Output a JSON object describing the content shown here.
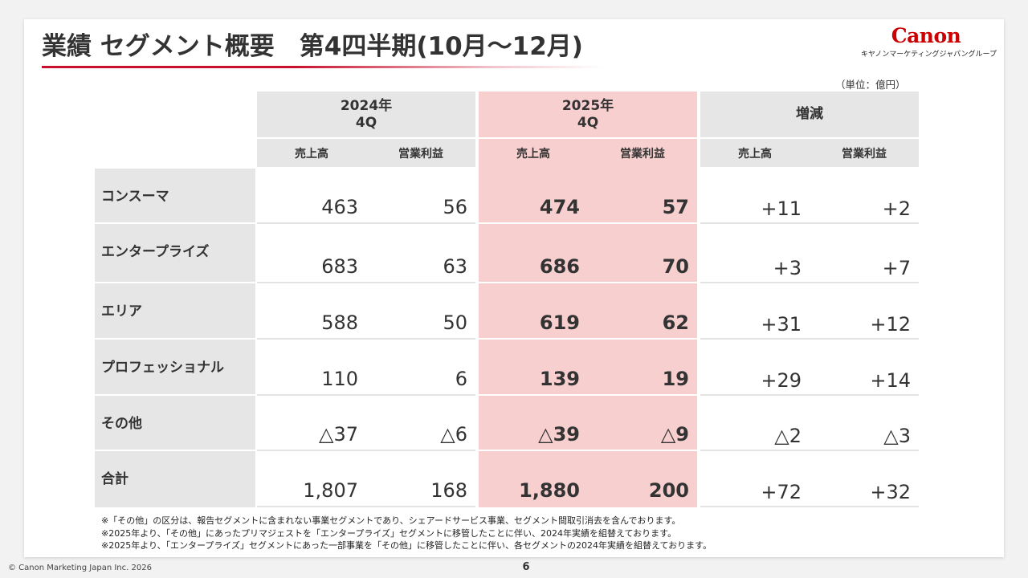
{
  "title": "業績 セグメント概要　第4四半期(10月～12月)",
  "logo": {
    "mark": "Canon",
    "sub": "キヤノンマーケティングジャパングループ"
  },
  "unit": "（単位：億円）",
  "table": {
    "groups": [
      {
        "line1": "2024年",
        "line2": "4Q"
      },
      {
        "line1": "2025年",
        "line2": "4Q"
      },
      {
        "line1": "増減",
        "line2": ""
      }
    ],
    "sub_headers": [
      "売上高",
      "営業利益",
      "売上高",
      "営業利益",
      "売上高",
      "営業利益"
    ],
    "rows": [
      {
        "label": "コンスーマ",
        "values": [
          "463",
          "56",
          "474",
          "57",
          "+11",
          "+2"
        ]
      },
      {
        "label": "エンタープライズ",
        "values": [
          "683",
          "63",
          "686",
          "70",
          "+3",
          "+7"
        ]
      },
      {
        "label": "エリア",
        "values": [
          "588",
          "50",
          "619",
          "62",
          "+31",
          "+12"
        ]
      },
      {
        "label": "プロフェッショナル",
        "values": [
          "110",
          "6",
          "139",
          "19",
          "+29",
          "+14"
        ]
      },
      {
        "label": "その他",
        "values": [
          "△37",
          "△6",
          "△39",
          "△9",
          "△2",
          "△3"
        ]
      },
      {
        "label": "合計",
        "values": [
          "1,807",
          "168",
          "1,880",
          "200",
          "+72",
          "+32"
        ]
      }
    ]
  },
  "notes": [
    "※「その他」の区分は、報告セグメントに含まれない事業セグメントであり、シェアードサービス事業、セグメント間取引消去を含んでおります。",
    "※2025年より、「その他」にあったプリマジェストを「エンタープライズ」セグメントに移管したことに伴い、2024年実績を組替えております。",
    "※2025年より、「エンタープライズ」セグメントにあった一部事業を「その他」に移管したことに伴い、各セグメントの2024年実績を組替えております。"
  ],
  "copyright": "© Canon Marketing Japan Inc. 2026",
  "page_number": "6",
  "colors": {
    "accent": "#c8102e",
    "highlight": "#f7cfcf",
    "header_grey": "#e6e6e6"
  }
}
